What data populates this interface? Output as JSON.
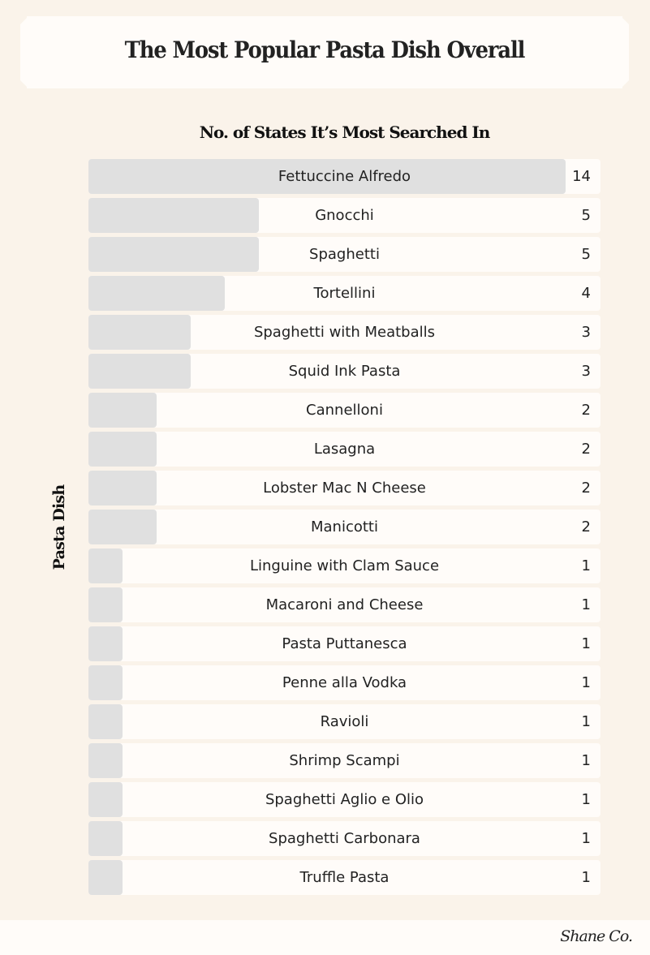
{
  "chart_data": {
    "type": "bar",
    "orientation": "horizontal",
    "title": "The Most Popular Pasta Dish Overall",
    "xlabel": "No. of States It’s Most Searched In",
    "ylabel": "Pasta Dish",
    "xlim": [
      0,
      15
    ],
    "grid": false,
    "categories": [
      "Fettuccine Alfredo",
      "Gnocchi",
      "Spaghetti",
      "Tortellini",
      "Spaghetti with Meatballs",
      "Squid Ink Pasta",
      "Cannelloni",
      "Lasagna",
      "Lobster Mac N Cheese",
      "Manicotti",
      "Linguine with Clam Sauce",
      "Macaroni and Cheese",
      "Pasta Puttanesca",
      "Penne alla Vodka",
      "Ravioli",
      "Shrimp Scampi",
      "Spaghetti Aglio e Olio",
      "Spaghetti Carbonara",
      "Truffle Pasta"
    ],
    "values": [
      14,
      5,
      5,
      4,
      3,
      3,
      2,
      2,
      2,
      2,
      1,
      1,
      1,
      1,
      1,
      1,
      1,
      1,
      1
    ],
    "colors": {
      "bar": "#e0e0e0",
      "row": "#fffcf9",
      "background": "#faf3ea"
    }
  },
  "brand": {
    "logo": "Shane Co."
  }
}
